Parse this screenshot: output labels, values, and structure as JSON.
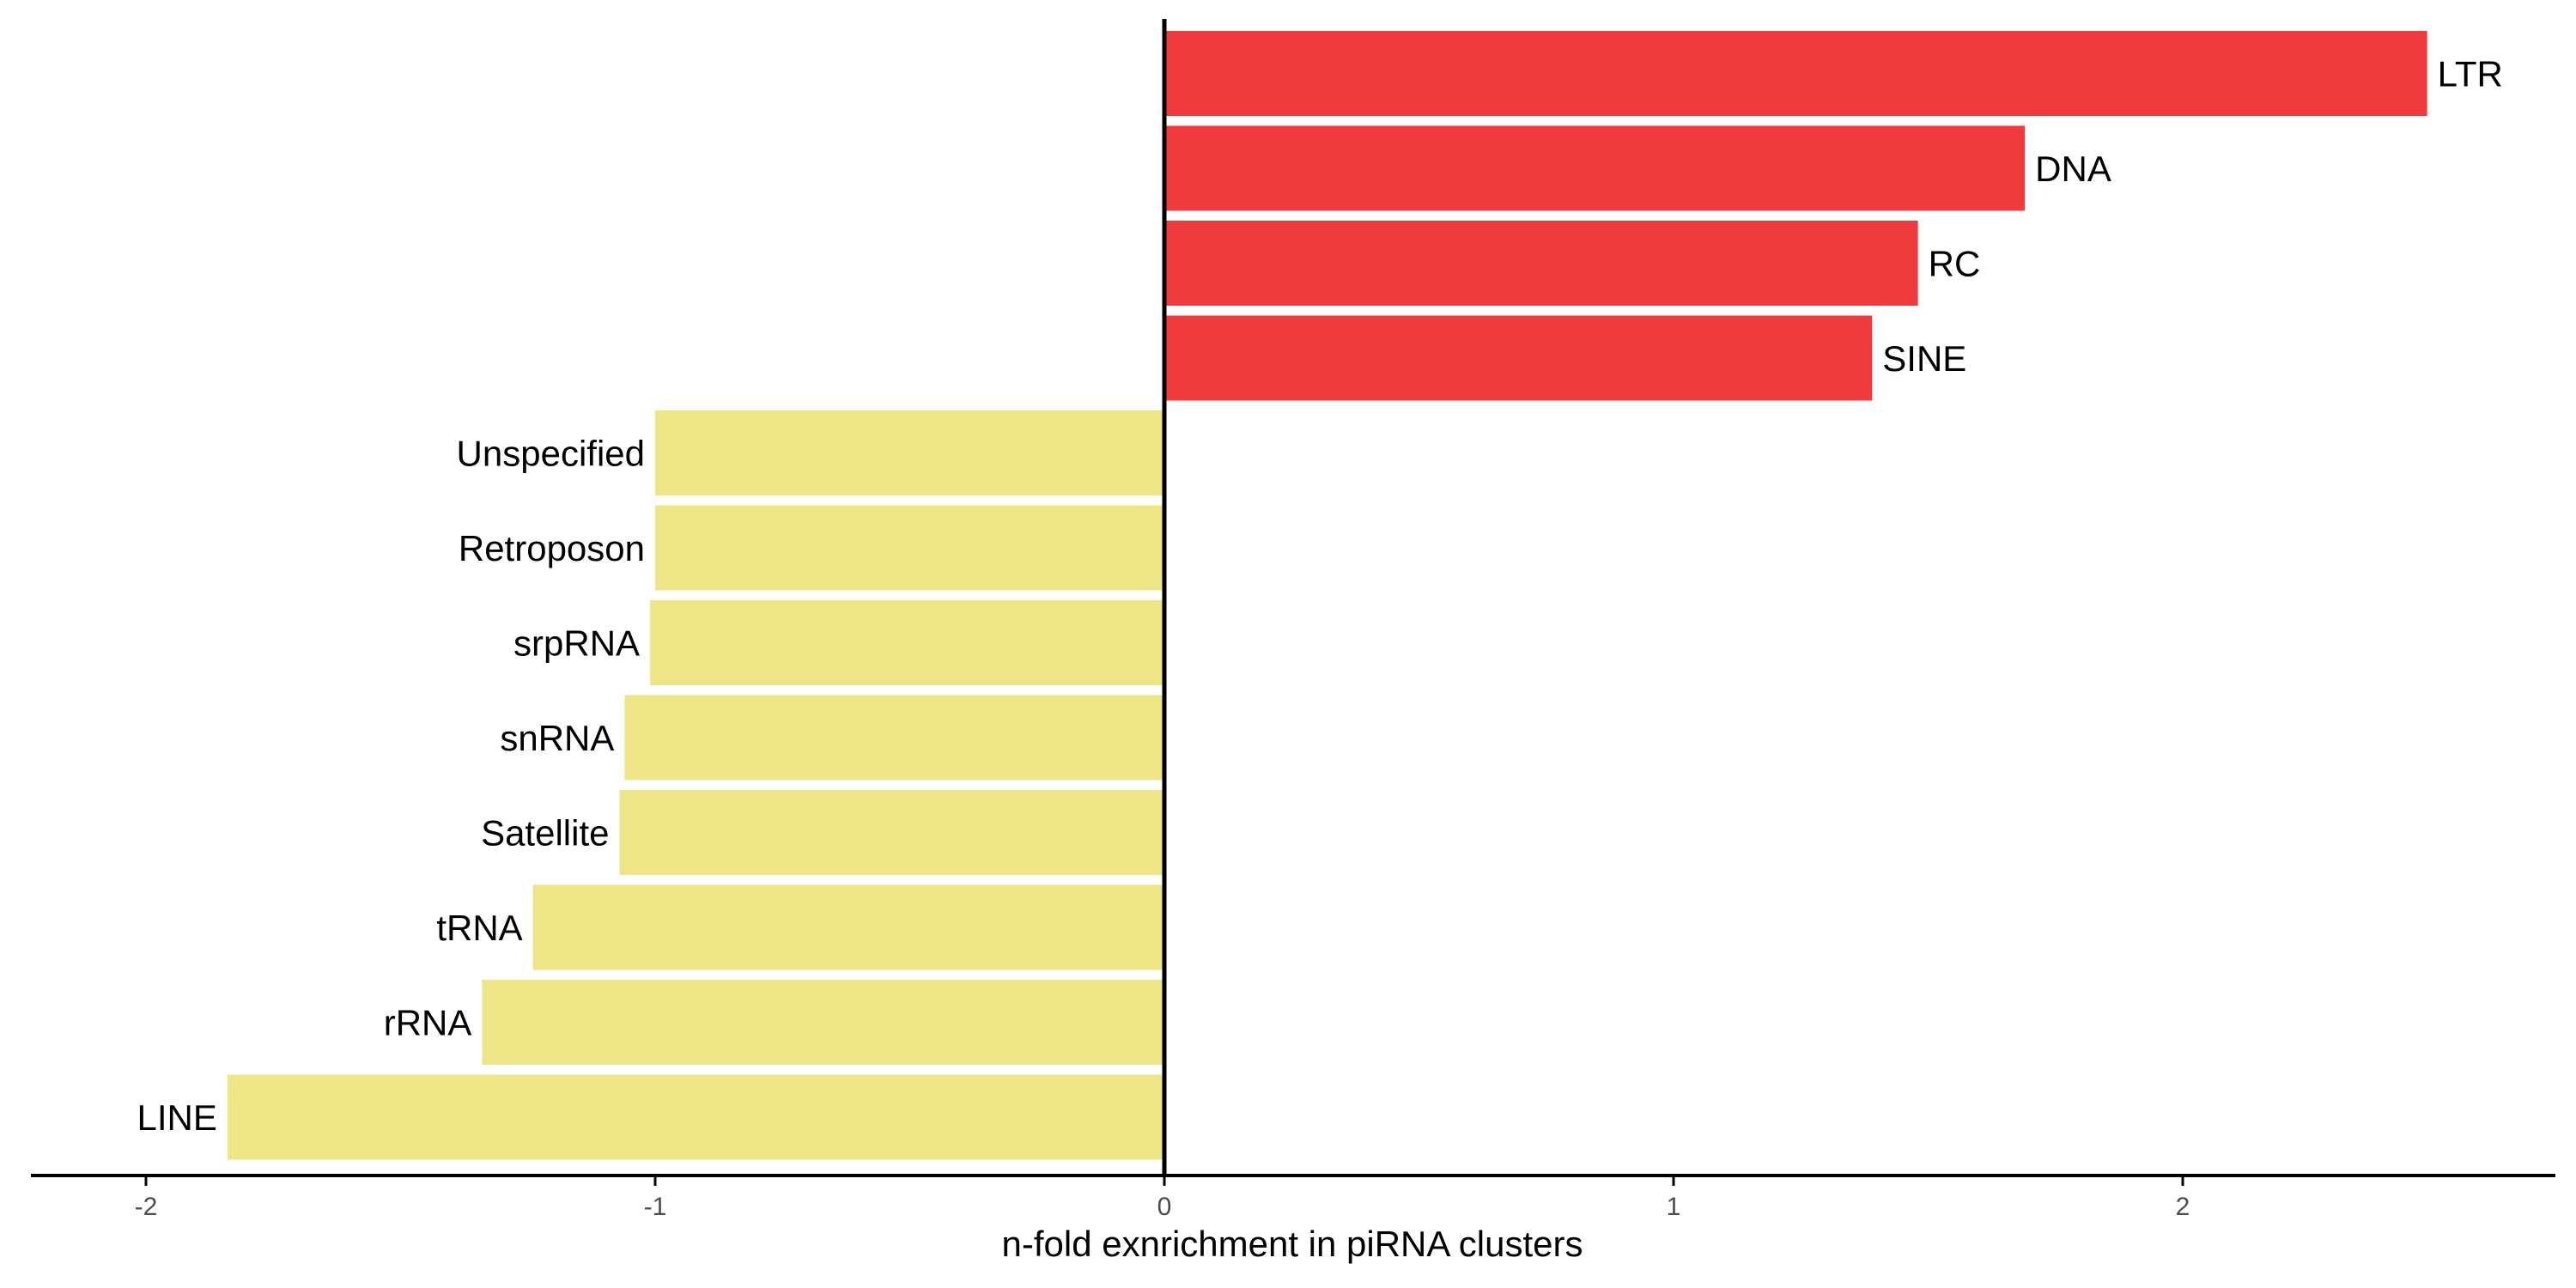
{
  "chart_data": {
    "type": "bar",
    "orientation": "horizontal",
    "title": "",
    "xlabel": "n-fold exnrichment in piRNA clusters",
    "ylabel": "",
    "xlim": [
      -2.23,
      2.72
    ],
    "x_ticks": [
      -2,
      -1,
      0,
      1,
      2
    ],
    "x_tick_labels": [
      "-2",
      "-1",
      "0",
      "1",
      "2"
    ],
    "grid": false,
    "legend": "none",
    "categories": [
      "LTR",
      "DNA",
      "RC",
      "SINE",
      "Unspecified",
      "Retroposon",
      "srpRNA",
      "snRNA",
      "Satellite",
      "tRNA",
      "rRNA",
      "LINE"
    ],
    "values": [
      2.48,
      1.69,
      1.48,
      1.39,
      -1.0,
      -1.0,
      -1.01,
      -1.06,
      -1.07,
      -1.24,
      -1.34,
      -1.84
    ],
    "colors": {
      "positive": "#ef3b3e",
      "negative": "#ede586",
      "axis": "#000000",
      "tick_label": "#4d4d4d"
    }
  }
}
